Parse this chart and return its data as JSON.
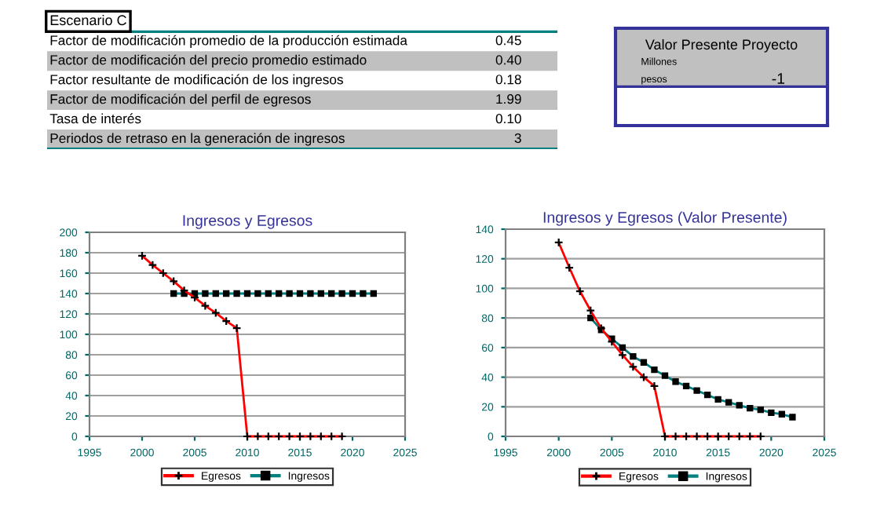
{
  "chart_data": [
    {
      "type": "other",
      "title": "Escenario C",
      "categories": [
        "Factor de modificación promedio de la producción estimada",
        "Factor de modificación del precio promedio estimado",
        "Factor resultante de modificación de los ingresos",
        "Factor de modificación del perfil de egresos",
        "Tasa de interés",
        "Periodos de retraso en la generación de ingresos"
      ],
      "values": [
        0.45,
        0.4,
        0.18,
        1.99,
        0.1,
        3
      ],
      "value_labels": [
        "0.45",
        "0.40",
        "0.18",
        "1.99",
        "0.10",
        "3"
      ]
    },
    {
      "type": "other",
      "title": "Valor Presente Proyecto",
      "annotations": [
        "Millones",
        "pesos"
      ],
      "values": [
        -1
      ],
      "value_labels": [
        "-1"
      ]
    },
    {
      "type": "line",
      "title": "Ingresos y Egresos",
      "xlim": [
        1995,
        2025
      ],
      "xticks": [
        1995,
        2000,
        2005,
        2010,
        2015,
        2020,
        2025
      ],
      "ylim": [
        0,
        200
      ],
      "yticks": [
        0,
        20,
        40,
        60,
        80,
        100,
        120,
        140,
        160,
        180,
        200
      ],
      "grid": "y",
      "legend": "bottom",
      "series": [
        {
          "name": "Egresos",
          "color": "#ff0000",
          "marker": "cross",
          "x": [
            2000,
            2001,
            2002,
            2003,
            2004,
            2005,
            2006,
            2007,
            2008,
            2009,
            2010,
            2011,
            2012,
            2013,
            2014,
            2015,
            2016,
            2017,
            2018,
            2019
          ],
          "values": [
            177,
            168,
            160,
            152,
            143,
            136,
            128,
            121,
            113,
            106,
            0,
            0,
            0,
            0,
            0,
            0,
            0,
            0,
            0,
            0
          ]
        },
        {
          "name": "Ingresos",
          "color": "#008080",
          "marker": "square",
          "x": [
            2003,
            2004,
            2005,
            2006,
            2007,
            2008,
            2009,
            2010,
            2011,
            2012,
            2013,
            2014,
            2015,
            2016,
            2017,
            2018,
            2019,
            2020,
            2021,
            2022
          ],
          "values": [
            140,
            140,
            140,
            140,
            140,
            140,
            140,
            140,
            140,
            140,
            140,
            140,
            140,
            140,
            140,
            140,
            140,
            140,
            140,
            140
          ]
        }
      ]
    },
    {
      "type": "line",
      "title": "Ingresos y Egresos (Valor Presente)",
      "xlim": [
        1995,
        2025
      ],
      "xticks": [
        1995,
        2000,
        2005,
        2010,
        2015,
        2020,
        2025
      ],
      "ylim": [
        0,
        140
      ],
      "yticks": [
        0,
        20,
        40,
        60,
        80,
        100,
        120,
        140
      ],
      "grid": "y",
      "legend": "bottom",
      "series": [
        {
          "name": "Egresos",
          "color": "#ff0000",
          "marker": "cross",
          "x": [
            2000,
            2001,
            2002,
            2003,
            2004,
            2005,
            2006,
            2007,
            2008,
            2009,
            2010,
            2011,
            2012,
            2013,
            2014,
            2015,
            2016,
            2017,
            2018,
            2019
          ],
          "values": [
            131,
            114,
            98,
            85,
            73,
            64,
            55,
            47,
            40,
            34,
            0,
            0,
            0,
            0,
            0,
            0,
            0,
            0,
            0,
            0
          ]
        },
        {
          "name": "Ingresos",
          "color": "#008080",
          "marker": "square",
          "x": [
            2003,
            2004,
            2005,
            2006,
            2007,
            2008,
            2009,
            2010,
            2011,
            2012,
            2013,
            2014,
            2015,
            2016,
            2017,
            2018,
            2019,
            2020,
            2021,
            2022
          ],
          "values": [
            80,
            72,
            66,
            60,
            54,
            50,
            45,
            41,
            37,
            34,
            31,
            28,
            25,
            23,
            21,
            19,
            18,
            16,
            15,
            13
          ]
        }
      ]
    }
  ]
}
